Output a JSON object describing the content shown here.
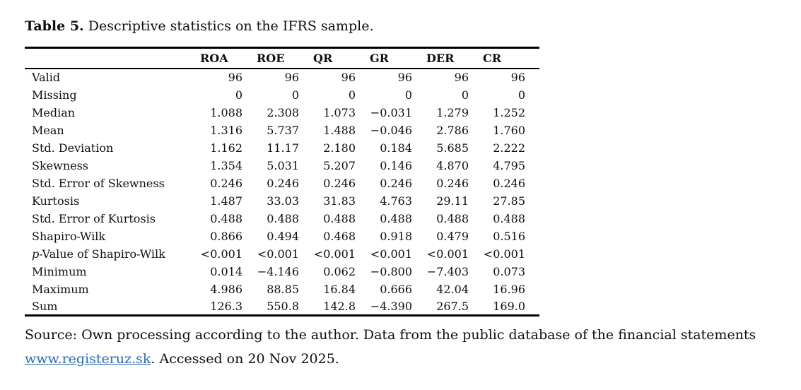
{
  "title": {
    "label": "Table 5.",
    "text": " Descriptive statistics on the IFRS sample."
  },
  "table": {
    "columns": [
      "ROA",
      "ROE",
      "QR",
      "GR",
      "DER",
      "CR"
    ],
    "rows": [
      {
        "label": "Valid",
        "values": [
          "96",
          "96",
          "96",
          "96",
          "96",
          "96"
        ]
      },
      {
        "label": "Missing",
        "values": [
          "0",
          "0",
          "0",
          "0",
          "0",
          "0"
        ]
      },
      {
        "label": "Median",
        "values": [
          "1.088",
          "2.308",
          "1.073",
          "−0.031",
          "1.279",
          "1.252"
        ]
      },
      {
        "label": "Mean",
        "values": [
          "1.316",
          "5.737",
          "1.488",
          "−0.046",
          "2.786",
          "1.760"
        ]
      },
      {
        "label": "Std. Deviation",
        "values": [
          "1.162",
          "11.17",
          "2.180",
          "0.184",
          "5.685",
          "2.222"
        ]
      },
      {
        "label": "Skewness",
        "values": [
          "1.354",
          "5.031",
          "5.207",
          "0.146",
          "4.870",
          "4.795"
        ]
      },
      {
        "label": "Std. Error of Skewness",
        "values": [
          "0.246",
          "0.246",
          "0.246",
          "0.246",
          "0.246",
          "0.246"
        ]
      },
      {
        "label": "Kurtosis",
        "values": [
          "1.487",
          "33.03",
          "31.83",
          "4.763",
          "29.11",
          "27.85"
        ]
      },
      {
        "label": "Std. Error of Kurtosis",
        "values": [
          "0.488",
          "0.488",
          "0.488",
          "0.488",
          "0.488",
          "0.488"
        ]
      },
      {
        "label": "Shapiro-Wilk",
        "values": [
          "0.866",
          "0.494",
          "0.468",
          "0.918",
          "0.479",
          "0.516"
        ]
      },
      {
        "italic_prefix": "p",
        "label": "-Value of Shapiro-Wilk",
        "values": [
          "<0.001",
          "<0.001",
          "<0.001",
          "<0.001",
          "<0.001",
          "<0.001"
        ]
      },
      {
        "label": "Minimum",
        "values": [
          "0.014",
          "−4.146",
          "0.062",
          "−0.800",
          "−7.403",
          "0.073"
        ]
      },
      {
        "label": "Maximum",
        "values": [
          "4.986",
          "88.85",
          "16.84",
          "0.666",
          "42.04",
          "16.96"
        ]
      },
      {
        "label": "Sum",
        "values": [
          "126.3",
          "550.8",
          "142.8",
          "−4.390",
          "267.5",
          "169.0"
        ]
      }
    ]
  },
  "source": {
    "text_before": "Source: Own processing according to the author. Data from the public database of the financial statements ",
    "link": "www.registeruz.sk",
    "text_after": ". Accessed on 20 Nov 2025."
  }
}
